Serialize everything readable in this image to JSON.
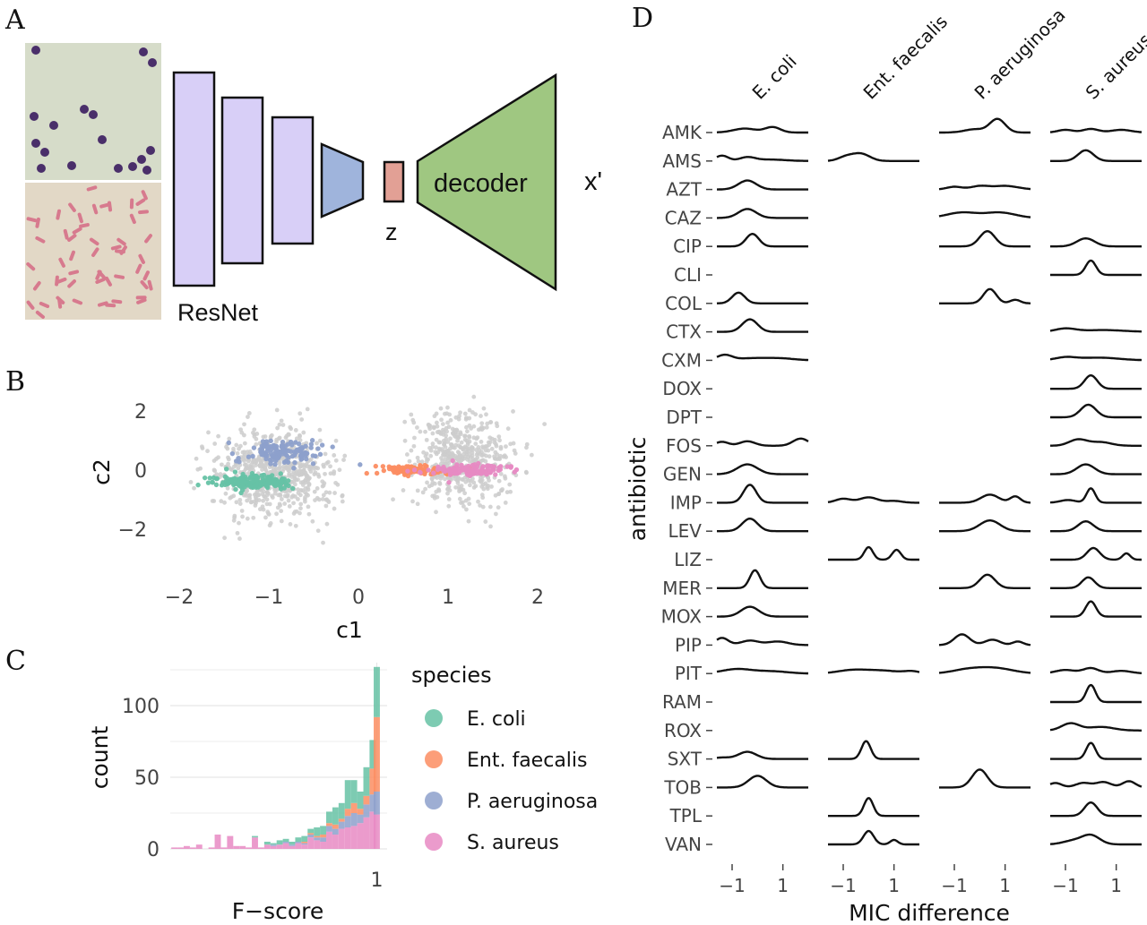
{
  "panels": {
    "A": {
      "label": "A",
      "resnet_label": "ResNet",
      "z_label": "z",
      "decoder_label": "decoder",
      "output_label": "x'",
      "colors": {
        "resnet": "#d8cff7",
        "encoder_head": "#9fb4dc",
        "z": "#e2a095",
        "decoder": "#9fc781"
      },
      "micrographs": [
        "gram-positive cocci micrograph",
        "gram-negative rods micrograph"
      ]
    },
    "B": {
      "label": "B",
      "xlabel": "c1",
      "ylabel": "c2",
      "xticks": [
        "−2",
        "−1",
        "0",
        "1",
        "2"
      ],
      "yticks": [
        "2",
        "0",
        "−2"
      ]
    },
    "C": {
      "label": "C",
      "xlabel": "F−score",
      "ylabel": "count",
      "xticks": [
        "1"
      ],
      "yticks": [
        "100",
        "50",
        "0"
      ],
      "legend_title": "species"
    },
    "D": {
      "label": "D",
      "xlabel": "MIC difference",
      "ylabel": "antibiotic",
      "xticks": [
        "−1",
        "1"
      ]
    }
  },
  "species": [
    {
      "name": "E. coli",
      "color": "#66c2a5"
    },
    {
      "name": "Ent. faecalis",
      "color": "#fc8d62"
    },
    {
      "name": "P. aeruginosa",
      "color": "#8da0cb"
    },
    {
      "name": "S. aureus",
      "color": "#e78ac3"
    }
  ],
  "chart_data": [
    {
      "panel": "B",
      "type": "scatter",
      "xlim": [
        -2.1,
        2.1
      ],
      "ylim": [
        -3.4,
        3.1
      ],
      "clusters": [
        {
          "name": "",
          "color": "#cccccc",
          "center": [
            -0.95,
            -0.1
          ],
          "spread": [
            0.55,
            1.3
          ]
        },
        {
          "name": "",
          "color": "#cccccc",
          "center": [
            1.15,
            0.4
          ],
          "spread": [
            0.45,
            1.4
          ]
        },
        {
          "series": "P. aeruginosa",
          "center": [
            -0.85,
            0.6
          ],
          "spread": [
            0.4,
            0.35
          ]
        },
        {
          "series": "E. coli",
          "center": [
            -1.15,
            -0.4
          ],
          "spread": [
            0.4,
            0.22
          ]
        },
        {
          "series": "Ent. faecalis",
          "center": [
            0.65,
            0.0
          ],
          "spread": [
            0.35,
            0.15
          ]
        },
        {
          "series": "S. aureus",
          "center": [
            1.2,
            0.0
          ],
          "spread": [
            0.4,
            0.17
          ]
        }
      ]
    },
    {
      "panel": "C",
      "type": "bar",
      "stacked": true,
      "xlim": [
        0.0,
        1.05
      ],
      "ylim": [
        0,
        130
      ],
      "bins": [
        0.02,
        0.05,
        0.08,
        0.11,
        0.14,
        0.17,
        0.2,
        0.23,
        0.26,
        0.29,
        0.32,
        0.35,
        0.38,
        0.41,
        0.44,
        0.47,
        0.5,
        0.53,
        0.56,
        0.59,
        0.62,
        0.65,
        0.68,
        0.71,
        0.74,
        0.77,
        0.8,
        0.83,
        0.86,
        0.89,
        0.92,
        0.95,
        0.98,
        1.0
      ],
      "series": [
        {
          "name": "S. aureus",
          "values": [
            1,
            1,
            2,
            1,
            3,
            0,
            1,
            10,
            1,
            9,
            2,
            2,
            1,
            8,
            1,
            3,
            2,
            3,
            4,
            2,
            4,
            3,
            8,
            6,
            5,
            12,
            10,
            14,
            15,
            16,
            18,
            22,
            26,
            24
          ]
        },
        {
          "name": "P. aeruginosa",
          "values": [
            0,
            0,
            0,
            0,
            0,
            0,
            0,
            0,
            0,
            0,
            0,
            0,
            0,
            0,
            0,
            0,
            1,
            0,
            1,
            1,
            1,
            1,
            2,
            2,
            3,
            4,
            4,
            5,
            8,
            9,
            6,
            9,
            12,
            16
          ]
        },
        {
          "name": "Ent. faecalis",
          "values": [
            0,
            0,
            0,
            0,
            0,
            0,
            0,
            0,
            0,
            0,
            0,
            0,
            0,
            0,
            0,
            0,
            0,
            0,
            0,
            0,
            0,
            1,
            1,
            1,
            2,
            2,
            3,
            2,
            5,
            7,
            4,
            6,
            18,
            52
          ]
        },
        {
          "name": "E. coli",
          "values": [
            0,
            0,
            0,
            0,
            0,
            0,
            0,
            0,
            0,
            0,
            0,
            0,
            0,
            1,
            0,
            2,
            1,
            3,
            2,
            2,
            3,
            4,
            3,
            6,
            6,
            8,
            12,
            11,
            20,
            16,
            12,
            20,
            20,
            35
          ]
        }
      ]
    },
    {
      "panel": "D",
      "type": "area",
      "subtype": "ridgeline",
      "xlim": [
        -1.6,
        2.0
      ],
      "columns": [
        "E. coli",
        "Ent. faecalis",
        "P. aeruginosa",
        "S. aureus"
      ],
      "antibiotics": [
        "AMK",
        "AMS",
        "AZT",
        "CAZ",
        "CIP",
        "CLI",
        "COL",
        "CTX",
        "CXM",
        "DOX",
        "DPT",
        "FOS",
        "GEN",
        "IMP",
        "LEV",
        "LIZ",
        "MER",
        "MOX",
        "PIP",
        "PIT",
        "RAM",
        "ROX",
        "SXT",
        "TOB",
        "TPL",
        "VAN"
      ],
      "ridges": {
        "E. coli": {
          "AMK": [
            [
              -0.5,
              0.45,
              0.22
            ],
            [
              0.6,
              0.3,
              0.3
            ]
          ],
          "AMS": [
            [
              -1.4,
              0.25,
              0.3
            ],
            [
              -0.4,
              0.3,
              0.2
            ],
            [
              0.5,
              0.6,
              0.08
            ]
          ],
          "AZT": [
            [
              -0.4,
              0.35,
              0.5
            ]
          ],
          "CAZ": [
            [
              -0.4,
              0.35,
              0.5
            ]
          ],
          "CIP": [
            [
              -0.2,
              0.25,
              0.7
            ]
          ],
          "COL": [
            [
              -0.75,
              0.25,
              0.6
            ]
          ],
          "CTX": [
            [
              -0.3,
              0.3,
              0.7
            ]
          ],
          "CXM": [
            [
              -1.3,
              0.3,
              0.3
            ],
            [
              -0.3,
              0.5,
              0.1
            ],
            [
              0.8,
              0.6,
              0.12
            ]
          ],
          "FOS": [
            [
              -1.4,
              0.25,
              0.22
            ],
            [
              -0.4,
              0.3,
              0.25
            ],
            [
              1.7,
              0.3,
              0.4
            ]
          ],
          "GEN": [
            [
              -0.4,
              0.4,
              0.55
            ]
          ],
          "IMP": [
            [
              -0.3,
              0.25,
              1.0
            ]
          ],
          "LEV": [
            [
              -0.3,
              0.3,
              0.7
            ]
          ],
          "MER": [
            [
              -0.1,
              0.2,
              1.0
            ]
          ],
          "MOX": [
            [
              -0.3,
              0.35,
              0.55
            ]
          ],
          "PIP": [
            [
              -1.4,
              0.25,
              0.4
            ],
            [
              -0.3,
              0.35,
              0.25
            ],
            [
              0.8,
              0.4,
              0.2
            ]
          ],
          "PIT": [
            [
              -0.8,
              0.6,
              0.25
            ],
            [
              0.6,
              0.6,
              0.12
            ]
          ],
          "SXT": [
            [
              -0.4,
              0.35,
              0.4
            ],
            [
              -1.4,
              0.3,
              0.08
            ]
          ],
          "TOB": [
            [
              0.0,
              0.35,
              0.65
            ]
          ]
        },
        "Ent. faecalis": {
          "AMS": [
            [
              -0.3,
              0.35,
              0.4
            ],
            [
              -0.9,
              0.3,
              0.22
            ]
          ],
          "IMP": [
            [
              -1.0,
              0.3,
              0.22
            ],
            [
              0.0,
              0.35,
              0.3
            ],
            [
              1.0,
              0.3,
              0.1
            ]
          ],
          "LIZ": [
            [
              0.0,
              0.17,
              0.7
            ],
            [
              1.1,
              0.17,
              0.55
            ]
          ],
          "PIT": [
            [
              -0.6,
              0.6,
              0.2
            ],
            [
              0.6,
              0.6,
              0.15
            ],
            [
              1.7,
              0.3,
              0.12
            ]
          ],
          "SXT": [
            [
              -0.1,
              0.18,
              1.0
            ]
          ],
          "TPL": [
            [
              0.0,
              0.18,
              1.0
            ]
          ],
          "VAN": [
            [
              0.0,
              0.2,
              0.75
            ],
            [
              1.0,
              0.15,
              0.25
            ]
          ]
        },
        "P. aeruginosa": {
          "AMK": [
            [
              0.7,
              0.3,
              0.75
            ],
            [
              -0.2,
              0.4,
              0.18
            ]
          ],
          "AZT": [
            [
              -1.0,
              0.3,
              0.15
            ],
            [
              0.0,
              0.35,
              0.18
            ],
            [
              1.0,
              0.5,
              0.2
            ]
          ],
          "CAZ": [
            [
              -0.7,
              0.6,
              0.3
            ],
            [
              0.8,
              0.6,
              0.3
            ]
          ],
          "CIP": [
            [
              0.3,
              0.3,
              0.85
            ]
          ],
          "COL": [
            [
              0.4,
              0.25,
              0.8
            ],
            [
              1.4,
              0.2,
              0.2
            ]
          ],
          "IMP": [
            [
              0.4,
              0.35,
              0.45
            ],
            [
              1.4,
              0.2,
              0.35
            ]
          ],
          "LEV": [
            [
              0.4,
              0.4,
              0.6
            ]
          ],
          "MER": [
            [
              0.3,
              0.3,
              0.75
            ]
          ],
          "PIP": [
            [
              -0.7,
              0.3,
              0.6
            ],
            [
              0.5,
              0.3,
              0.3
            ],
            [
              1.5,
              0.2,
              0.2
            ]
          ],
          "PIT": [
            [
              -0.5,
              0.6,
              0.2
            ],
            [
              0.6,
              0.7,
              0.3
            ]
          ],
          "TOB": [
            [
              0.0,
              0.3,
              1.0
            ]
          ]
        },
        "S. aureus": {
          "AMK": [
            [
              -1.0,
              0.3,
              0.15
            ],
            [
              0.0,
              0.3,
              0.2
            ],
            [
              1.2,
              0.4,
              0.15
            ]
          ],
          "AMS": [
            [
              -0.2,
              0.3,
              0.6
            ]
          ],
          "CIP": [
            [
              -0.2,
              0.35,
              0.45
            ]
          ],
          "CLI": [
            [
              0.0,
              0.2,
              0.8
            ]
          ],
          "CTX": [
            [
              -1.0,
              0.4,
              0.18
            ],
            [
              0.5,
              0.8,
              0.1
            ]
          ],
          "CXM": [
            [
              -1.0,
              0.4,
              0.15
            ],
            [
              0.3,
              0.8,
              0.15
            ]
          ],
          "DOX": [
            [
              0.0,
              0.25,
              0.75
            ]
          ],
          "DPT": [
            [
              -0.1,
              0.3,
              0.7
            ]
          ],
          "FOS": [
            [
              -0.5,
              0.35,
              0.35
            ],
            [
              0.4,
              0.4,
              0.2
            ]
          ],
          "GEN": [
            [
              -0.2,
              0.35,
              0.55
            ]
          ],
          "IMP": [
            [
              0.0,
              0.17,
              0.8
            ],
            [
              -0.9,
              0.3,
              0.15
            ]
          ],
          "LEV": [
            [
              -0.2,
              0.3,
              0.55
            ]
          ],
          "LIZ": [
            [
              0.1,
              0.25,
              0.65
            ],
            [
              1.4,
              0.15,
              0.35
            ]
          ],
          "MER": [
            [
              -0.1,
              0.25,
              0.6
            ]
          ],
          "MOX": [
            [
              0.0,
              0.2,
              0.85
            ]
          ],
          "PIT": [
            [
              -1.0,
              0.4,
              0.2
            ],
            [
              0.0,
              0.3,
              0.3
            ],
            [
              1.2,
              0.4,
              0.15
            ]
          ],
          "RAM": [
            [
              0.0,
              0.18,
              0.95
            ]
          ],
          "ROX": [
            [
              -0.8,
              0.35,
              0.4
            ],
            [
              0.4,
              0.5,
              0.2
            ]
          ],
          "SXT": [
            [
              0.0,
              0.18,
              0.9
            ]
          ],
          "TOB": [
            [
              -1.4,
              0.25,
              0.25
            ],
            [
              -0.3,
              0.3,
              0.25
            ],
            [
              0.5,
              0.3,
              0.3
            ],
            [
              1.5,
              0.25,
              0.35
            ]
          ],
          "TPL": [
            [
              0.0,
              0.25,
              0.75
            ]
          ],
          "VAN": [
            [
              0.0,
              0.35,
              0.5
            ],
            [
              -0.7,
              0.4,
              0.2
            ]
          ]
        }
      }
    }
  ]
}
